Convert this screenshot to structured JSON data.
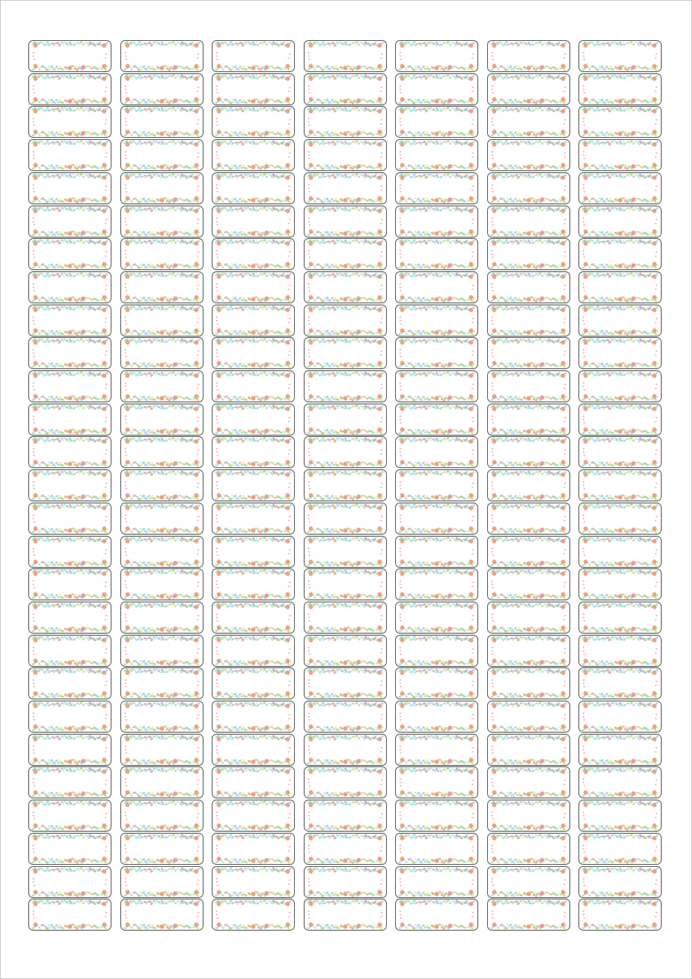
{
  "sheet": {
    "columns": 7,
    "rows": 27,
    "label_text": "",
    "label_border_color": "#333333",
    "page_border_color": "#bfbfbf"
  },
  "decoration": {
    "style": "floral border",
    "colors": {
      "leaf_green": "#9ed36a",
      "teal": "#6fd1c6",
      "light_blue": "#8ec9ec",
      "coral": "#f08a6c",
      "pink": "#ee7f95",
      "purple": "#9a8fd8",
      "yellow": "#e9d86a"
    }
  }
}
